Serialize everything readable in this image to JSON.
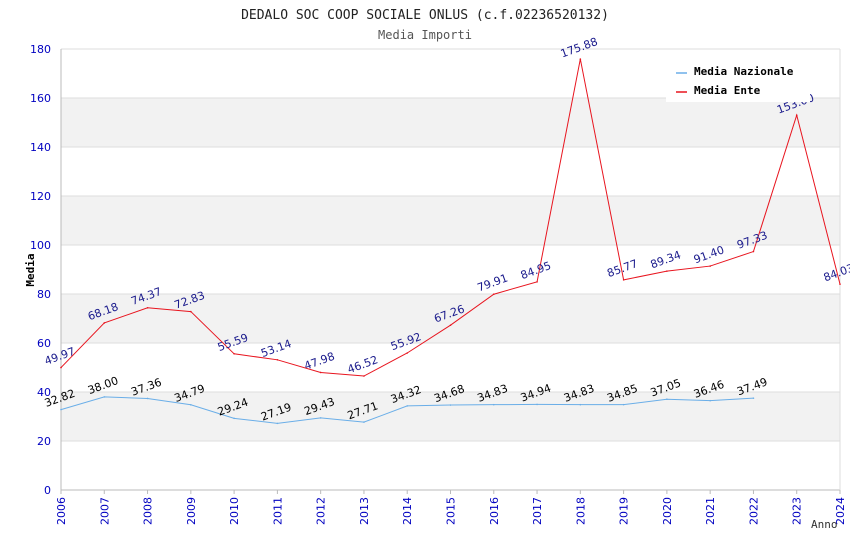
{
  "chart_data": {
    "type": "line",
    "title": "DEDALO SOC COOP SOCIALE ONLUS (c.f.02236520132)",
    "subtitle": "Media Importi",
    "xlabel": "Anno",
    "ylabel": "Media",
    "ylim": [
      0,
      180
    ],
    "yticks": [
      "0",
      "20",
      "40",
      "60",
      "80",
      "100",
      "120",
      "140",
      "160",
      "180"
    ],
    "categories": [
      "2006",
      "2007",
      "2008",
      "2009",
      "2010",
      "2011",
      "2012",
      "2013",
      "2014",
      "2015",
      "2016",
      "2017",
      "2018",
      "2019",
      "2020",
      "2021",
      "2022",
      "2023",
      "2024"
    ],
    "legend_position": "top-right",
    "series": [
      {
        "name": "Media Nazionale",
        "color": "#6aaee8",
        "label_color": "#000000",
        "values": [
          32.82,
          38.0,
          37.36,
          34.79,
          29.24,
          27.19,
          29.43,
          27.71,
          34.32,
          34.68,
          34.83,
          34.94,
          34.83,
          34.85,
          37.05,
          36.46,
          37.49,
          null,
          null
        ],
        "labels": [
          "32.82",
          "38.00",
          "37.36",
          "34.79",
          "29.24",
          "27.19",
          "29.43",
          "27.71",
          "34.32",
          "34.68",
          "34.83",
          "34.94",
          "34.83",
          "34.85",
          "37.05",
          "36.46",
          "37.49",
          null,
          null
        ]
      },
      {
        "name": "Media Ente",
        "color": "#e8141e",
        "label_color": "#1a1a8c",
        "values": [
          49.97,
          68.18,
          74.37,
          72.83,
          55.59,
          53.14,
          47.98,
          46.52,
          55.92,
          67.26,
          79.91,
          84.95,
          175.88,
          85.77,
          89.34,
          91.4,
          97.33,
          153.0,
          84.03
        ],
        "labels": [
          "49.97",
          "68.18",
          "74.37",
          "72.83",
          "55.59",
          "53.14",
          "47.98",
          "46.52",
          "55.92",
          "67.26",
          "79.91",
          "84.95",
          "175.88",
          "85.77",
          "89.34",
          "91.40",
          "97.33",
          "153.00",
          "84.03"
        ]
      }
    ]
  },
  "colors": {
    "axis_text": "#0000c0",
    "band": "#f2f2f2",
    "grid": "#dddddd",
    "axis": "#bbbbbb",
    "title": "#222222",
    "subtitle": "#555555"
  }
}
